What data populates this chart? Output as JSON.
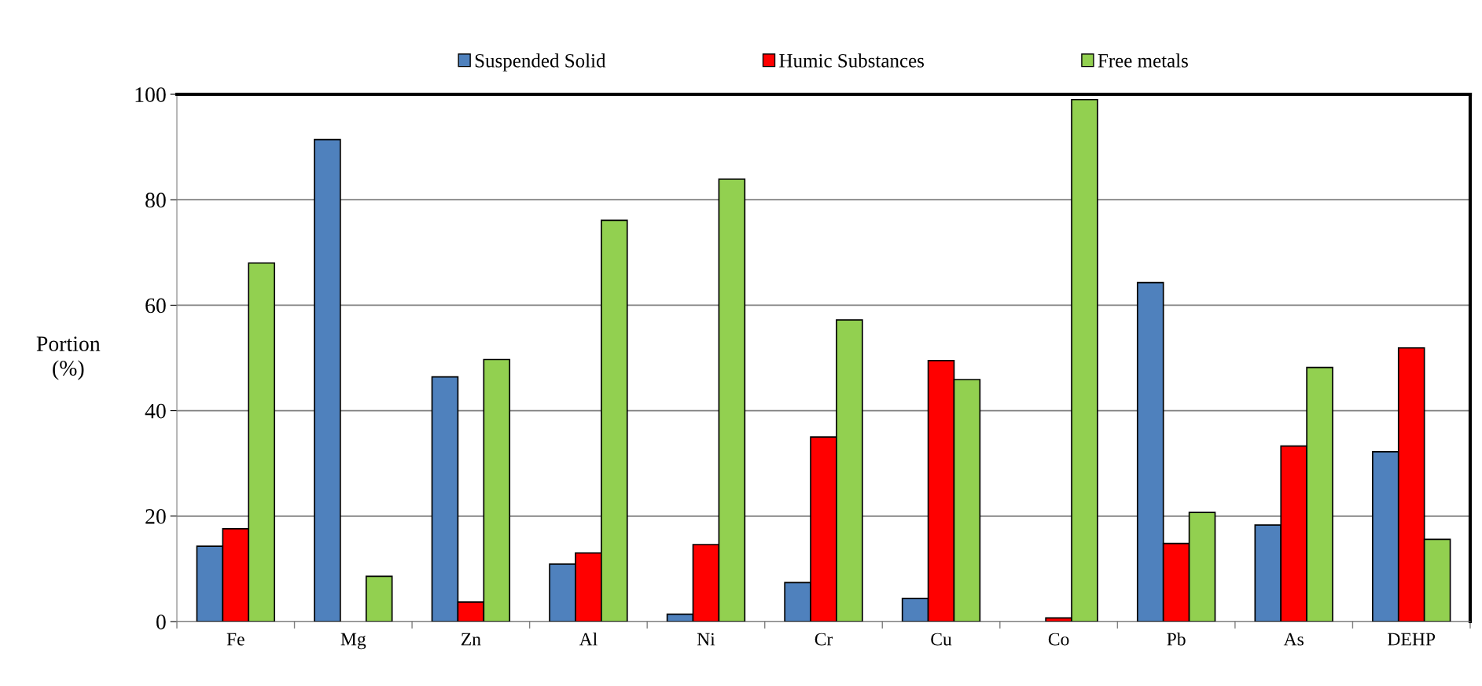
{
  "chart_data": {
    "type": "bar",
    "ylabel": "Portion\n(%)",
    "categories": [
      "Fe",
      "Mg",
      "Zn",
      "Al",
      "Ni",
      "Cr",
      "Cu",
      "Co",
      "Pb",
      "As",
      "DEHP"
    ],
    "series": [
      {
        "name": "Suspended Solid",
        "color": "#4f81bd",
        "values": [
          14.3,
          91.4,
          46.4,
          10.9,
          1.4,
          7.4,
          4.4,
          null,
          64.3,
          18.3,
          32.2
        ]
      },
      {
        "name": "Humic Substances",
        "color": "#ff0000",
        "values": [
          17.6,
          null,
          3.7,
          13.0,
          14.6,
          35.0,
          49.5,
          0.7,
          14.8,
          33.3,
          51.9
        ]
      },
      {
        "name": "Free metals",
        "color": "#92d050",
        "values": [
          68.0,
          8.6,
          49.7,
          76.1,
          83.9,
          57.2,
          45.9,
          99.0,
          20.7,
          48.2,
          15.6
        ]
      }
    ],
    "ylim": [
      0,
      100
    ],
    "yticks": [
      0,
      20,
      40,
      60,
      80,
      100
    ],
    "grid": "y",
    "legend": "top"
  }
}
